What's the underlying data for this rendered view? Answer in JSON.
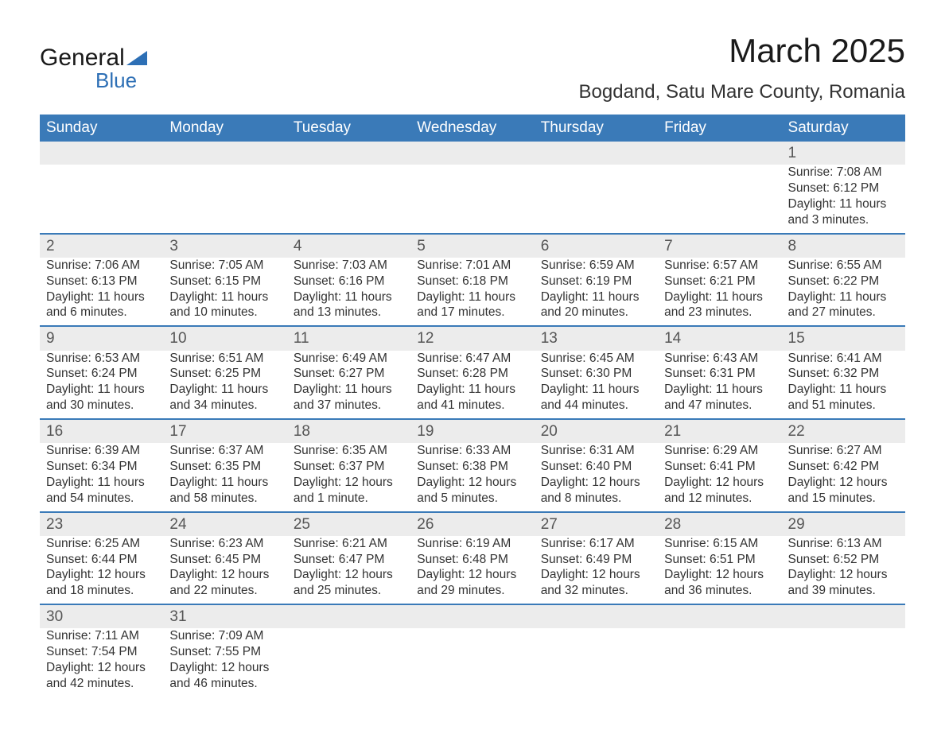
{
  "brand": {
    "word1": "General",
    "word2": "Blue",
    "word1_color": "#1a1a1a",
    "word2_color": "#2d6fb5",
    "flag_color": "#2d6fb5"
  },
  "title": "March 2025",
  "location": "Bogdand, Satu Mare County, Romania",
  "colors": {
    "header_bg": "#3a7ab8",
    "header_text": "#ffffff",
    "daynum_bg": "#ececec",
    "week_border": "#3a7ab8",
    "body_text": "#333333"
  },
  "weekdays": [
    "Sunday",
    "Monday",
    "Tuesday",
    "Wednesday",
    "Thursday",
    "Friday",
    "Saturday"
  ],
  "weeks": [
    [
      null,
      null,
      null,
      null,
      null,
      null,
      {
        "n": "1",
        "sr": "7:08 AM",
        "ss": "6:12 PM",
        "dl": "11 hours and 3 minutes."
      }
    ],
    [
      {
        "n": "2",
        "sr": "7:06 AM",
        "ss": "6:13 PM",
        "dl": "11 hours and 6 minutes."
      },
      {
        "n": "3",
        "sr": "7:05 AM",
        "ss": "6:15 PM",
        "dl": "11 hours and 10 minutes."
      },
      {
        "n": "4",
        "sr": "7:03 AM",
        "ss": "6:16 PM",
        "dl": "11 hours and 13 minutes."
      },
      {
        "n": "5",
        "sr": "7:01 AM",
        "ss": "6:18 PM",
        "dl": "11 hours and 17 minutes."
      },
      {
        "n": "6",
        "sr": "6:59 AM",
        "ss": "6:19 PM",
        "dl": "11 hours and 20 minutes."
      },
      {
        "n": "7",
        "sr": "6:57 AM",
        "ss": "6:21 PM",
        "dl": "11 hours and 23 minutes."
      },
      {
        "n": "8",
        "sr": "6:55 AM",
        "ss": "6:22 PM",
        "dl": "11 hours and 27 minutes."
      }
    ],
    [
      {
        "n": "9",
        "sr": "6:53 AM",
        "ss": "6:24 PM",
        "dl": "11 hours and 30 minutes."
      },
      {
        "n": "10",
        "sr": "6:51 AM",
        "ss": "6:25 PM",
        "dl": "11 hours and 34 minutes."
      },
      {
        "n": "11",
        "sr": "6:49 AM",
        "ss": "6:27 PM",
        "dl": "11 hours and 37 minutes."
      },
      {
        "n": "12",
        "sr": "6:47 AM",
        "ss": "6:28 PM",
        "dl": "11 hours and 41 minutes."
      },
      {
        "n": "13",
        "sr": "6:45 AM",
        "ss": "6:30 PM",
        "dl": "11 hours and 44 minutes."
      },
      {
        "n": "14",
        "sr": "6:43 AM",
        "ss": "6:31 PM",
        "dl": "11 hours and 47 minutes."
      },
      {
        "n": "15",
        "sr": "6:41 AM",
        "ss": "6:32 PM",
        "dl": "11 hours and 51 minutes."
      }
    ],
    [
      {
        "n": "16",
        "sr": "6:39 AM",
        "ss": "6:34 PM",
        "dl": "11 hours and 54 minutes."
      },
      {
        "n": "17",
        "sr": "6:37 AM",
        "ss": "6:35 PM",
        "dl": "11 hours and 58 minutes."
      },
      {
        "n": "18",
        "sr": "6:35 AM",
        "ss": "6:37 PM",
        "dl": "12 hours and 1 minute."
      },
      {
        "n": "19",
        "sr": "6:33 AM",
        "ss": "6:38 PM",
        "dl": "12 hours and 5 minutes."
      },
      {
        "n": "20",
        "sr": "6:31 AM",
        "ss": "6:40 PM",
        "dl": "12 hours and 8 minutes."
      },
      {
        "n": "21",
        "sr": "6:29 AM",
        "ss": "6:41 PM",
        "dl": "12 hours and 12 minutes."
      },
      {
        "n": "22",
        "sr": "6:27 AM",
        "ss": "6:42 PM",
        "dl": "12 hours and 15 minutes."
      }
    ],
    [
      {
        "n": "23",
        "sr": "6:25 AM",
        "ss": "6:44 PM",
        "dl": "12 hours and 18 minutes."
      },
      {
        "n": "24",
        "sr": "6:23 AM",
        "ss": "6:45 PM",
        "dl": "12 hours and 22 minutes."
      },
      {
        "n": "25",
        "sr": "6:21 AM",
        "ss": "6:47 PM",
        "dl": "12 hours and 25 minutes."
      },
      {
        "n": "26",
        "sr": "6:19 AM",
        "ss": "6:48 PM",
        "dl": "12 hours and 29 minutes."
      },
      {
        "n": "27",
        "sr": "6:17 AM",
        "ss": "6:49 PM",
        "dl": "12 hours and 32 minutes."
      },
      {
        "n": "28",
        "sr": "6:15 AM",
        "ss": "6:51 PM",
        "dl": "12 hours and 36 minutes."
      },
      {
        "n": "29",
        "sr": "6:13 AM",
        "ss": "6:52 PM",
        "dl": "12 hours and 39 minutes."
      }
    ],
    [
      {
        "n": "30",
        "sr": "7:11 AM",
        "ss": "7:54 PM",
        "dl": "12 hours and 42 minutes."
      },
      {
        "n": "31",
        "sr": "7:09 AM",
        "ss": "7:55 PM",
        "dl": "12 hours and 46 minutes."
      },
      null,
      null,
      null,
      null,
      null
    ]
  ],
  "labels": {
    "sunrise": "Sunrise: ",
    "sunset": "Sunset: ",
    "daylight": "Daylight: "
  }
}
